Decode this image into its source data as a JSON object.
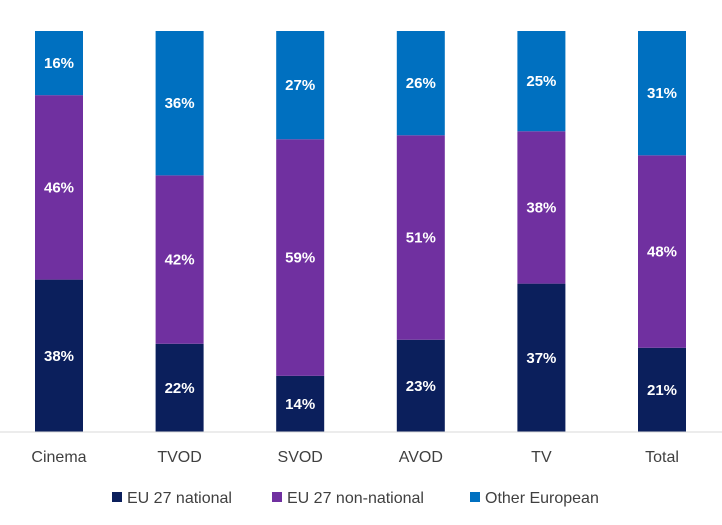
{
  "chart_data": {
    "type": "bar",
    "stacked": true,
    "percent_stacked": true,
    "categories": [
      "Cinema",
      "TVOD",
      "SVOD",
      "AVOD",
      "TV",
      "Total"
    ],
    "series": [
      {
        "name": "EU 27 national",
        "color": "#0b1f5c",
        "values": [
          38,
          22,
          14,
          23,
          37,
          21
        ],
        "labels": [
          "38%",
          "22%",
          "14%",
          "23%",
          "37%",
          "21%"
        ]
      },
      {
        "name": "EU 27 non-national",
        "color": "#7030a0",
        "values": [
          46,
          42,
          59,
          51,
          38,
          48
        ],
        "labels": [
          "46%",
          "42%",
          "59%",
          "51%",
          "38%",
          "48%"
        ]
      },
      {
        "name": "Other European",
        "color": "#0070c0",
        "values": [
          16,
          36,
          27,
          26,
          25,
          31
        ],
        "labels": [
          "16%",
          "36%",
          "27%",
          "26%",
          "25%",
          "31%"
        ]
      }
    ],
    "ylim": [
      0,
      100
    ],
    "grid": false,
    "legend_position": "bottom"
  }
}
